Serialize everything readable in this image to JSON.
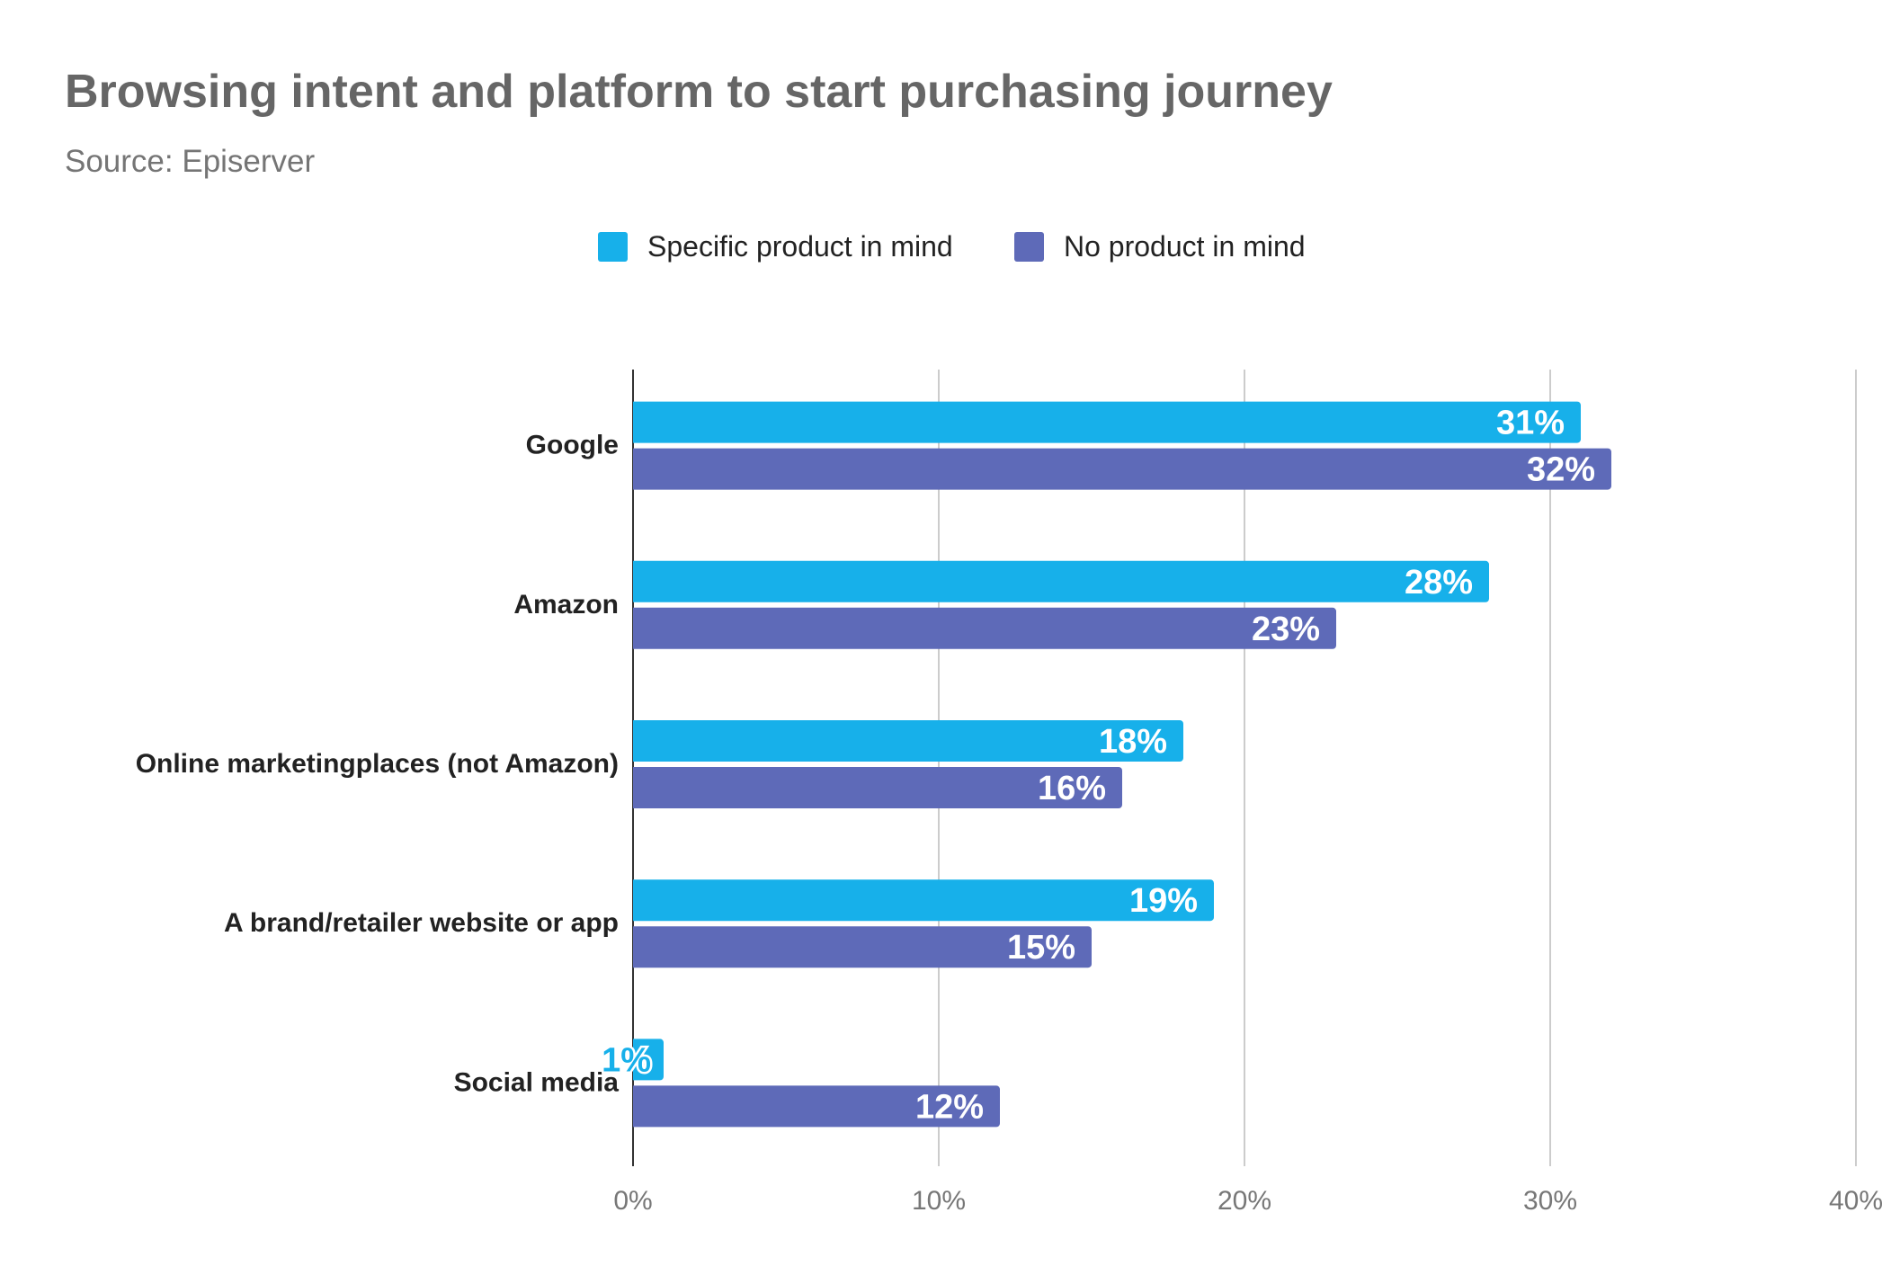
{
  "chart_data": {
    "type": "bar",
    "orientation": "horizontal",
    "title": "Browsing intent and platform to start purchasing journey",
    "subtitle": "Source: Episerver",
    "categories": [
      "Google",
      "Amazon",
      "Online marketingplaces (not Amazon)",
      "A brand/retailer website or app",
      "Social media"
    ],
    "series": [
      {
        "name": "Specific product in mind",
        "color": "#17b0ea",
        "values": [
          31,
          28,
          18,
          19,
          1
        ],
        "labels": [
          "31%",
          "28%",
          "18%",
          "19%",
          "1%"
        ]
      },
      {
        "name": "No product in mind",
        "color": "#5e6ab8",
        "values": [
          32,
          23,
          16,
          15,
          12
        ],
        "labels": [
          "32%",
          "23%",
          "16%",
          "15%",
          "12%"
        ]
      }
    ],
    "xlim": [
      0,
      40
    ],
    "xticks": [
      "0%",
      "10%",
      "20%",
      "30%",
      "40%"
    ],
    "grid": true,
    "legend": "top-center"
  }
}
